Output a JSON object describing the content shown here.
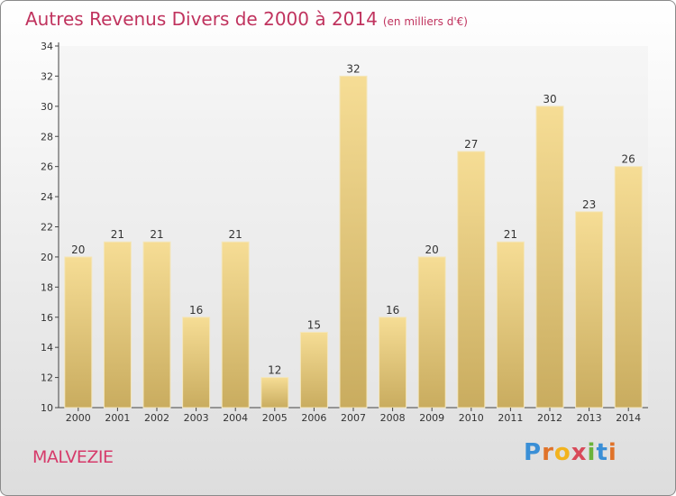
{
  "title": "Autres Revenus Divers de 2000 à 2014",
  "subtitle": "(en milliers d'€)",
  "commune": "MALVEZIE",
  "logo": {
    "brand": "Proxiti",
    "letters": [
      "P",
      "r",
      "o",
      "x",
      "i",
      "t",
      "i"
    ]
  },
  "colors": {
    "title": "#c0335e",
    "commune": "#d63a6a",
    "bar_top": "#f6dd95",
    "bar_bottom": "#c9ac5f"
  },
  "chart_data": {
    "type": "bar",
    "categories": [
      "2000",
      "2001",
      "2002",
      "2003",
      "2004",
      "2005",
      "2006",
      "2007",
      "2008",
      "2009",
      "2010",
      "2011",
      "2012",
      "2013",
      "2014"
    ],
    "values": [
      20,
      21,
      21,
      16,
      21,
      12,
      15,
      32,
      16,
      20,
      27,
      21,
      30,
      23,
      26
    ],
    "ylim": [
      10,
      34
    ],
    "yticks": [
      10,
      12,
      14,
      16,
      18,
      20,
      22,
      24,
      26,
      28,
      30,
      32,
      34
    ],
    "grid": false,
    "xlabel": "",
    "ylabel": ""
  }
}
